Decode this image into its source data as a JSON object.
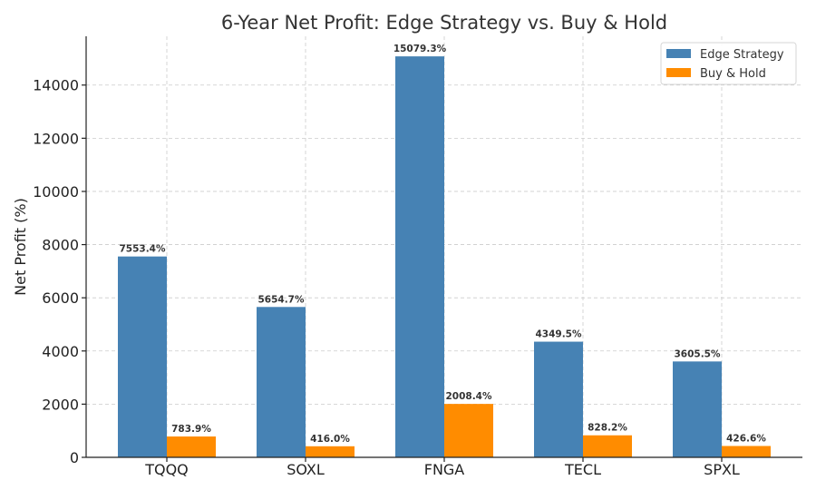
{
  "chart_data": {
    "type": "bar",
    "title": "6-Year Net Profit: Edge Strategy vs. Buy & Hold",
    "xlabel": "",
    "ylabel": "Net Profit (%)",
    "categories": [
      "TQQQ",
      "SOXL",
      "FNGA",
      "TECL",
      "SPXL"
    ],
    "series": [
      {
        "name": "Edge Strategy",
        "color": "#4682b4",
        "values": [
          7553.4,
          5654.7,
          15079.3,
          4349.5,
          3605.5
        ],
        "labels": [
          "7553.4%",
          "5654.7%",
          "15079.3%",
          "4349.5%",
          "3605.5%"
        ]
      },
      {
        "name": "Buy & Hold",
        "color": "#ff8c00",
        "values": [
          783.9,
          416.0,
          2008.4,
          828.2,
          426.6
        ],
        "labels": [
          "783.9%",
          "416.0%",
          "2008.4%",
          "828.2%",
          "426.6%"
        ]
      }
    ],
    "ylim": [
      0,
      15834
    ],
    "yticks": [
      0,
      2000,
      4000,
      6000,
      8000,
      10000,
      12000,
      14000
    ],
    "ytick_labels": [
      "0",
      "2000",
      "4000",
      "6000",
      "8000",
      "10000",
      "12000",
      "14000"
    ],
    "grid": true,
    "legend": "top-right"
  }
}
